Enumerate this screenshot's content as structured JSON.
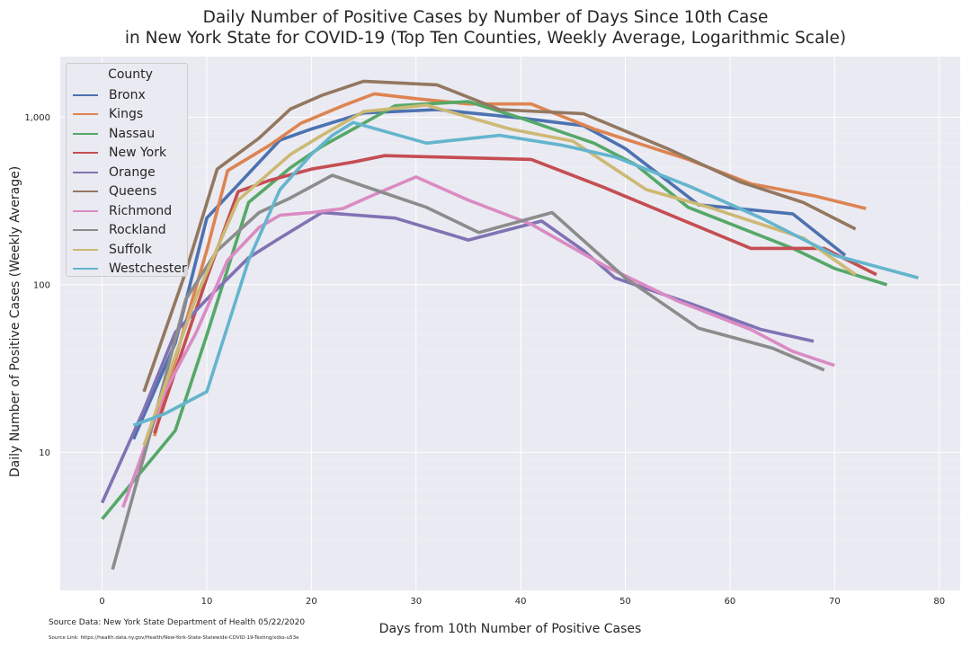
{
  "title_line1": "Daily Number of Positive Cases by Number of Days Since 10th Case",
  "title_line2": "in New York State for COVID-19 (Top Ten Counties, Weekly Average, Logarithmic Scale)",
  "source_data": "Source Data: New York State Department of Health 05/22/2020",
  "source_link": "Source Link: https://health.data.ny.gov/Health/New-York-State-Statewide-COVID-19-Testing/xdss-u53e",
  "chart_data": {
    "type": "line",
    "title": "Daily Number of Positive Cases by Number of Days Since 10th Case in New York State for COVID-19 (Top Ten Counties, Weekly Average, Logarithmic Scale)",
    "xlabel": "Days from 10th Number of Positive Cases",
    "ylabel": "Daily Number of Positive Cases (Weekly Average)",
    "xlim": [
      -4,
      82
    ],
    "ylim": [
      1.5,
      2300
    ],
    "yscale": "log",
    "xticks": [
      0,
      10,
      20,
      30,
      40,
      50,
      60,
      70,
      80
    ],
    "yticks": [
      10,
      100,
      1000
    ],
    "ytick_labels": [
      "10",
      "100",
      "1,000"
    ],
    "grid": true,
    "legend_title": "County",
    "legend_position": "upper-left",
    "series": [
      {
        "name": "Bronx",
        "color": "#4c72b0",
        "points": [
          [
            3,
            12
          ],
          [
            7,
            45
          ],
          [
            10,
            250
          ],
          [
            17,
            730
          ],
          [
            20,
            850
          ],
          [
            25,
            1060
          ],
          [
            32,
            1110
          ],
          [
            40,
            990
          ],
          [
            46,
            890
          ],
          [
            50,
            650
          ],
          [
            57,
            300
          ],
          [
            66,
            265
          ],
          [
            71,
            150
          ]
        ]
      },
      {
        "name": "Kings",
        "color": "#dd8452",
        "points": [
          [
            5,
            12.5
          ],
          [
            8,
            60
          ],
          [
            10,
            160
          ],
          [
            12,
            480
          ],
          [
            16,
            680
          ],
          [
            19,
            920
          ],
          [
            23,
            1170
          ],
          [
            26,
            1380
          ],
          [
            30,
            1290
          ],
          [
            35,
            1200
          ],
          [
            41,
            1200
          ],
          [
            47,
            850
          ],
          [
            56,
            560
          ],
          [
            62,
            400
          ],
          [
            68,
            340
          ],
          [
            73,
            285
          ]
        ]
      },
      {
        "name": "Nassau",
        "color": "#55a868",
        "points": [
          [
            0,
            4
          ],
          [
            7,
            13.5
          ],
          [
            10,
            50
          ],
          [
            14,
            310
          ],
          [
            18,
            500
          ],
          [
            21,
            670
          ],
          [
            28,
            1170
          ],
          [
            35,
            1240
          ],
          [
            40,
            990
          ],
          [
            47,
            700
          ],
          [
            51,
            520
          ],
          [
            56,
            290
          ],
          [
            66,
            165
          ],
          [
            70,
            125
          ],
          [
            75,
            100
          ]
        ]
      },
      {
        "name": "New York",
        "color": "#c44e52",
        "points": [
          [
            5,
            13
          ],
          [
            10,
            110
          ],
          [
            13,
            360
          ],
          [
            16,
            420
          ],
          [
            20,
            490
          ],
          [
            24,
            540
          ],
          [
            27,
            590
          ],
          [
            34,
            575
          ],
          [
            41,
            560
          ],
          [
            48,
            380
          ],
          [
            55,
            250
          ],
          [
            62,
            165
          ],
          [
            69,
            165
          ],
          [
            74,
            115
          ]
        ]
      },
      {
        "name": "Orange",
        "color": "#8172b3",
        "points": [
          [
            0,
            5
          ],
          [
            4,
            18
          ],
          [
            7,
            52
          ],
          [
            10,
            82
          ],
          [
            14,
            145
          ],
          [
            17,
            190
          ],
          [
            21,
            270
          ],
          [
            28,
            250
          ],
          [
            35,
            185
          ],
          [
            42,
            240
          ],
          [
            46,
            160
          ],
          [
            49,
            110
          ],
          [
            56,
            78
          ],
          [
            63,
            54
          ],
          [
            68,
            46
          ]
        ]
      },
      {
        "name": "Queens",
        "color": "#937860",
        "points": [
          [
            4,
            23
          ],
          [
            8,
            120
          ],
          [
            11,
            490
          ],
          [
            15,
            750
          ],
          [
            18,
            1120
          ],
          [
            21,
            1350
          ],
          [
            25,
            1640
          ],
          [
            32,
            1560
          ],
          [
            38,
            1110
          ],
          [
            46,
            1050
          ],
          [
            54,
            650
          ],
          [
            61,
            410
          ],
          [
            67,
            310
          ],
          [
            72,
            215
          ]
        ]
      },
      {
        "name": "Richmond",
        "color": "#da8bc3",
        "points": [
          [
            2,
            4.7
          ],
          [
            6,
            23
          ],
          [
            9,
            52
          ],
          [
            12,
            140
          ],
          [
            15,
            220
          ],
          [
            17,
            260
          ],
          [
            20,
            270
          ],
          [
            23,
            285
          ],
          [
            26,
            345
          ],
          [
            30,
            440
          ],
          [
            35,
            320
          ],
          [
            41,
            230
          ],
          [
            48,
            130
          ],
          [
            55,
            80
          ],
          [
            62,
            54
          ],
          [
            66,
            40
          ],
          [
            70,
            33
          ]
        ]
      },
      {
        "name": "Rockland",
        "color": "#8c8c8c",
        "points": [
          [
            1,
            2
          ],
          [
            5,
            16
          ],
          [
            8,
            82
          ],
          [
            11,
            160
          ],
          [
            15,
            270
          ],
          [
            18,
            330
          ],
          [
            22,
            450
          ],
          [
            26,
            370
          ],
          [
            31,
            290
          ],
          [
            36,
            205
          ],
          [
            43,
            270
          ],
          [
            50,
            110
          ],
          [
            57,
            55
          ],
          [
            64,
            42
          ],
          [
            69,
            31
          ]
        ]
      },
      {
        "name": "Suffolk",
        "color": "#ccb974",
        "points": [
          [
            4,
            11
          ],
          [
            9,
            85
          ],
          [
            13,
            320
          ],
          [
            18,
            600
          ],
          [
            21,
            780
          ],
          [
            25,
            1080
          ],
          [
            31,
            1180
          ],
          [
            39,
            850
          ],
          [
            45,
            720
          ],
          [
            52,
            370
          ],
          [
            58,
            290
          ],
          [
            67,
            190
          ],
          [
            72,
            115
          ]
        ]
      },
      {
        "name": "Westchester",
        "color": "#64b5cd",
        "points": [
          [
            3,
            14.5
          ],
          [
            6,
            17
          ],
          [
            10,
            23
          ],
          [
            14,
            140
          ],
          [
            17,
            370
          ],
          [
            20,
            600
          ],
          [
            22,
            780
          ],
          [
            24,
            930
          ],
          [
            31,
            700
          ],
          [
            38,
            780
          ],
          [
            44,
            680
          ],
          [
            49,
            580
          ],
          [
            56,
            390
          ],
          [
            63,
            250
          ],
          [
            70,
            150
          ],
          [
            78,
            110
          ]
        ]
      }
    ]
  }
}
